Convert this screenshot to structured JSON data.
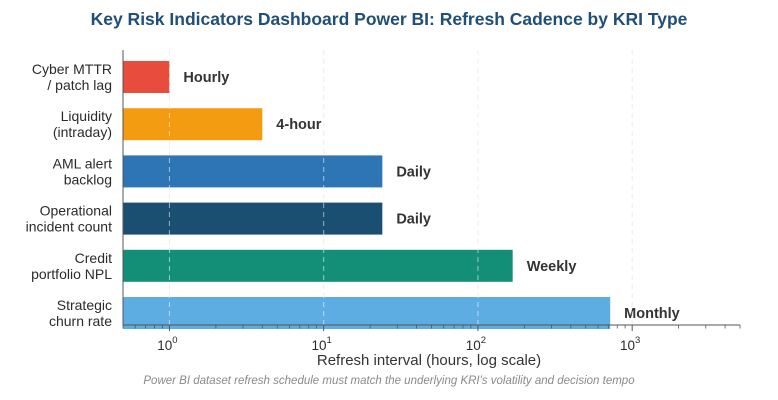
{
  "chart_data": {
    "type": "bar",
    "orientation": "horizontal",
    "title": "Key Risk Indicators Dashboard Power BI: Refresh Cadence by KRI Type",
    "xlabel": "Refresh interval (hours, log scale)",
    "ylabel": "",
    "footnote": "Power BI dataset refresh schedule must match the underlying KRI's volatility and decision tempo",
    "x_scale": "log",
    "xlim": [
      0.5,
      5000
    ],
    "x_ticks": [
      {
        "value": 1,
        "base": "10",
        "exp": "0"
      },
      {
        "value": 10,
        "base": "10",
        "exp": "1"
      },
      {
        "value": 100,
        "base": "10",
        "exp": "2"
      },
      {
        "value": 1000,
        "base": "10",
        "exp": "3"
      }
    ],
    "grid": "x-major-dashed",
    "categories": [
      [
        "Cyber MTTR",
        "/ patch lag"
      ],
      [
        "Liquidity",
        "(intraday)"
      ],
      [
        "AML alert",
        "backlog"
      ],
      [
        "Operational",
        "incident count"
      ],
      [
        "Credit",
        "portfolio NPL"
      ],
      [
        "Strategic",
        "churn rate"
      ]
    ],
    "values": [
      1,
      4,
      24,
      24,
      168,
      720
    ],
    "data_labels": [
      "Hourly",
      "4-hour",
      "Daily",
      "Daily",
      "Weekly",
      "Monthly"
    ],
    "colors": [
      "#e74c3c",
      "#f39c12",
      "#2e75b6",
      "#1b4f72",
      "#148f77",
      "#5dade2"
    ]
  }
}
